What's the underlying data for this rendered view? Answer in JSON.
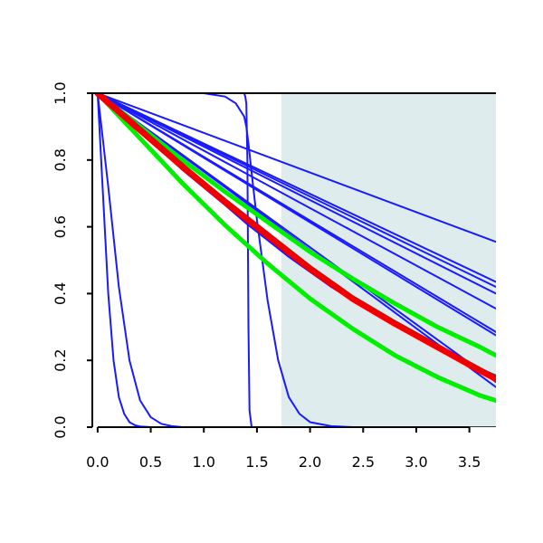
{
  "chart_data": {
    "type": "line",
    "title": "",
    "xlabel": "",
    "ylabel": "",
    "xlim": [
      -0.05,
      3.75
    ],
    "ylim": [
      0.0,
      1.0
    ],
    "x_ticks": [
      "0.0",
      "0.5",
      "1.0",
      "1.5",
      "2.0",
      "2.5",
      "3.0",
      "3.5"
    ],
    "y_ticks": [
      "0.0",
      "0.2",
      "0.4",
      "0.6",
      "0.8",
      "1.0"
    ],
    "grid": false,
    "shaded_region": {
      "x_start": 1.73,
      "x_end": 3.75,
      "color": "#dfeced"
    },
    "series": [
      {
        "color": "#1a1aff",
        "width": 2,
        "x": [
          0.0,
          3.75
        ],
        "y": [
          1.0,
          0.555
        ]
      },
      {
        "color": "#1a1aff",
        "width": 2,
        "x": [
          0.0,
          3.75
        ],
        "y": [
          1.0,
          0.435
        ]
      },
      {
        "color": "#1a1aff",
        "width": 2,
        "x": [
          0.0,
          3.75
        ],
        "y": [
          1.0,
          0.42
        ]
      },
      {
        "color": "#1a1aff",
        "width": 2,
        "x": [
          0.0,
          3.75
        ],
        "y": [
          1.0,
          0.4
        ]
      },
      {
        "color": "#1a1aff",
        "width": 2,
        "x": [
          0.0,
          3.75
        ],
        "y": [
          1.0,
          0.355
        ]
      },
      {
        "color": "#1a1aff",
        "width": 2,
        "x": [
          0.0,
          3.75
        ],
        "y": [
          1.0,
          0.285
        ]
      },
      {
        "color": "#1a1aff",
        "width": 2,
        "x": [
          0.0,
          3.75
        ],
        "y": [
          1.0,
          0.275
        ]
      },
      {
        "color": "#1a1aff",
        "width": 2,
        "x": [
          0.0,
          3.75
        ],
        "y": [
          1.0,
          0.135
        ]
      },
      {
        "color": "#1a1aff",
        "width": 2,
        "x": [
          0.0,
          3.75
        ],
        "y": [
          1.0,
          0.12
        ]
      },
      {
        "color": "#1a1aff",
        "width": 2,
        "x": [
          0.0,
          0.05,
          0.1,
          0.15,
          0.2,
          0.25,
          0.3,
          0.35,
          0.4,
          0.5,
          0.6,
          0.8,
          3.75
        ],
        "y": [
          1.0,
          0.7,
          0.4,
          0.2,
          0.09,
          0.04,
          0.015,
          0.006,
          0.002,
          0.0,
          0.0,
          0.0,
          0.0
        ]
      },
      {
        "color": "#1a1aff",
        "width": 2,
        "x": [
          0.0,
          0.1,
          0.2,
          0.3,
          0.4,
          0.5,
          0.6,
          0.7,
          0.8,
          1.0,
          3.75
        ],
        "y": [
          1.0,
          0.72,
          0.42,
          0.2,
          0.08,
          0.03,
          0.01,
          0.003,
          0.0,
          0.0,
          0.0
        ]
      },
      {
        "color": "#1a1aff",
        "width": 2,
        "x": [
          0.0,
          1.0,
          1.2,
          1.3,
          1.38,
          1.4,
          1.42,
          1.44,
          1.5,
          1.6,
          1.7,
          1.8,
          1.9,
          2.0,
          2.2,
          2.4,
          3.75
        ],
        "y": [
          1.0,
          1.0,
          0.99,
          0.97,
          0.93,
          0.9,
          0.85,
          0.79,
          0.62,
          0.38,
          0.2,
          0.09,
          0.04,
          0.015,
          0.003,
          0.0,
          0.0
        ]
      },
      {
        "color": "#1a1aff",
        "width": 2,
        "x": [
          0.0,
          1.38,
          1.39,
          1.4,
          1.41,
          1.42,
          1.43,
          1.45,
          3.75
        ],
        "y": [
          1.0,
          1.0,
          0.99,
          0.97,
          0.8,
          0.3,
          0.05,
          0.0,
          0.0
        ]
      },
      {
        "color": "#1a1aff",
        "width": 2,
        "x": [
          0.0,
          0.4,
          0.8,
          1.2,
          1.4,
          1.6,
          1.8,
          2.0,
          2.2,
          2.4,
          2.6,
          2.8,
          3.0,
          3.2,
          3.4,
          3.6,
          3.75
        ],
        "y": [
          1.0,
          0.89,
          0.77,
          0.665,
          0.61,
          0.56,
          0.51,
          0.465,
          0.42,
          0.38,
          0.34,
          0.305,
          0.27,
          0.235,
          0.205,
          0.175,
          0.155
        ]
      },
      {
        "color": "#00ee00",
        "width": 5,
        "x": [
          0.0,
          0.4,
          0.8,
          1.2,
          1.6,
          2.0,
          2.4,
          2.8,
          3.2,
          3.6,
          3.75
        ],
        "y": [
          1.0,
          0.9,
          0.8,
          0.705,
          0.615,
          0.525,
          0.445,
          0.37,
          0.3,
          0.24,
          0.215
        ]
      },
      {
        "color": "#00ee00",
        "width": 5,
        "x": [
          0.0,
          0.4,
          0.8,
          1.2,
          1.6,
          2.0,
          2.4,
          2.8,
          3.2,
          3.6,
          3.75
        ],
        "y": [
          1.0,
          0.865,
          0.73,
          0.605,
          0.49,
          0.385,
          0.295,
          0.215,
          0.15,
          0.095,
          0.08
        ]
      },
      {
        "color": "#ee0000",
        "width": 7,
        "x": [
          0.0,
          0.4,
          0.8,
          1.2,
          1.6,
          2.0,
          2.4,
          2.8,
          3.2,
          3.6,
          3.75
        ],
        "y": [
          1.0,
          0.89,
          0.78,
          0.675,
          0.575,
          0.475,
          0.385,
          0.31,
          0.24,
          0.17,
          0.145
        ]
      }
    ]
  }
}
